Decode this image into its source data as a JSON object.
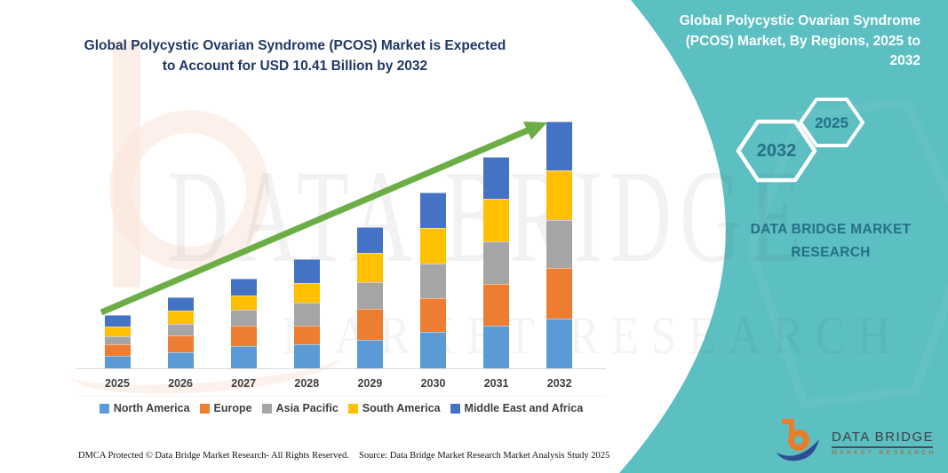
{
  "left_panel": {
    "title_lines": [
      "Global Polycystic Ovarian Syndrome (PCOS) Market is Expected",
      "to Account for USD 10.41 Billion by 2032"
    ],
    "footer_left": "DMCA Protected © Data Bridge Market Research-  All Rights Reserved.",
    "footer_right": "Source: Data Bridge Market Research  Market Analysis Study 2025"
  },
  "right_panel": {
    "title_lines": [
      "Global Polycystic Ovarian Syndrome",
      "(PCOS) Market, By Regions, 2025 to",
      "2032"
    ],
    "hexagon_back_label": "2032",
    "hexagon_front_label": "2025",
    "brand_lines": [
      "DATA BRIDGE MARKET",
      "RESEARCH"
    ],
    "background_color": "#5CBFC1",
    "text_color": "#26708a"
  },
  "logo": {
    "name": "DATA BRIDGE",
    "tagline": "MARKET RESEARCH",
    "b_color": "#E87D2B",
    "swoosh_color": "#2E4E93"
  },
  "watermark": {
    "line1": "DATA BRIDGE",
    "line2": "MARKET RESEARCH"
  },
  "trend_arrow_color": "#6CAE45",
  "chart_data": {
    "type": "bar",
    "stacked": true,
    "title": "Global Polycystic Ovarian Syndrome (PCOS) Market is Expected to Account for USD 10.41 Billion by 2032",
    "unit": "USD Billion",
    "categories": [
      "2025",
      "2026",
      "2027",
      "2028",
      "2029",
      "2030",
      "2031",
      "2032"
    ],
    "series": [
      {
        "name": "North America",
        "color": "#5B9BD5",
        "values": [
          0.52,
          0.67,
          0.94,
          1.01,
          1.2,
          1.53,
          1.8,
          2.1
        ]
      },
      {
        "name": "Europe",
        "color": "#ED7D31",
        "values": [
          0.48,
          0.72,
          0.86,
          0.79,
          1.31,
          1.42,
          1.77,
          2.13
        ]
      },
      {
        "name": "Asia Pacific",
        "color": "#A5A5A5",
        "values": [
          0.36,
          0.5,
          0.67,
          0.97,
          1.12,
          1.46,
          1.79,
          2.03
        ]
      },
      {
        "name": "South America",
        "color": "#FFC000",
        "values": [
          0.41,
          0.54,
          0.6,
          0.82,
          1.24,
          1.5,
          1.79,
          2.09
        ]
      },
      {
        "name": "Middle East and Africa",
        "color": "#4472C4",
        "values": [
          0.48,
          0.55,
          0.71,
          1.0,
          1.07,
          1.5,
          1.76,
          2.06
        ]
      }
    ],
    "totals_estimated": [
      2.25,
      2.98,
      3.78,
      4.59,
      5.94,
      7.41,
      8.91,
      10.41
    ],
    "final_year_value_stated": 10.41,
    "xlabel": "",
    "ylabel": "",
    "y_axis_visible": false,
    "gridlines": false,
    "legend_position": "bottom",
    "annotations": [
      "upward green trend arrow across bars"
    ]
  }
}
